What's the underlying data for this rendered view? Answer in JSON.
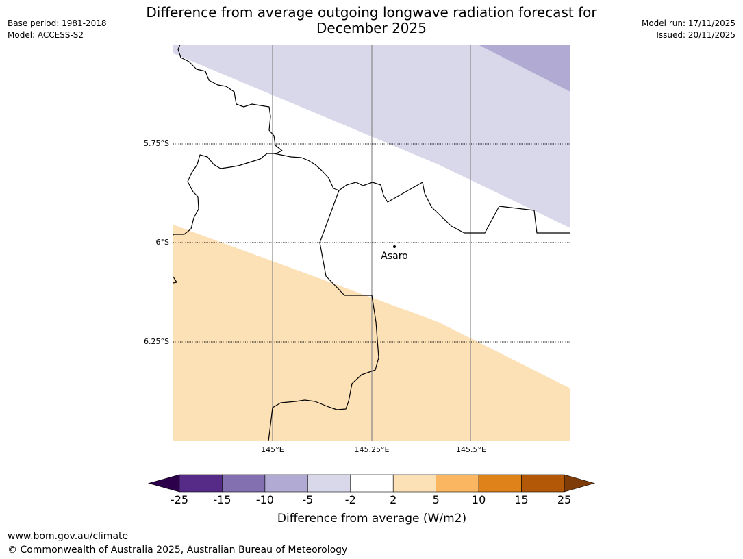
{
  "title_line1": "Difference from average outgoing longwave radiation forecast for",
  "title_line2": "December 2025",
  "meta_left": {
    "base_period": "Base period: 1981-2018",
    "model": "Model: ACCESS-S2"
  },
  "meta_right": {
    "model_run": "Model run: 17/11/2025",
    "issued": "Issued: 20/11/2025"
  },
  "map": {
    "lat_labels": [
      "5.75°S",
      "6°S",
      "6.25°S"
    ],
    "lon_labels": [
      "145°E",
      "145.25°E",
      "145.5°E"
    ],
    "place": {
      "name": "Asaro",
      "lat": -6.01,
      "lon": 145.3
    },
    "fill_colors": {
      "light_purple": "#d8d8ea",
      "mid_purple": "#b1aad3",
      "light_orange": "#fce0b6"
    }
  },
  "colorbar": {
    "tick_labels": [
      "-25",
      "-15",
      "-10",
      "-5",
      "-2",
      "2",
      "5",
      "10",
      "15",
      "25"
    ],
    "colors": [
      "#562a87",
      "#8270b0",
      "#b1aad3",
      "#d8d8ea",
      "#ffffff",
      "#fce0b6",
      "#fbb661",
      "#e0821a",
      "#b35807"
    ],
    "extend_low": "#2d004b",
    "extend_high": "#7f3b08",
    "label": "Difference from average (W/m2)"
  },
  "footer": {
    "url": "www.bom.gov.au/climate",
    "copyright": "© Commonwealth of Australia 2025, Australian Bureau of Meteorology"
  }
}
